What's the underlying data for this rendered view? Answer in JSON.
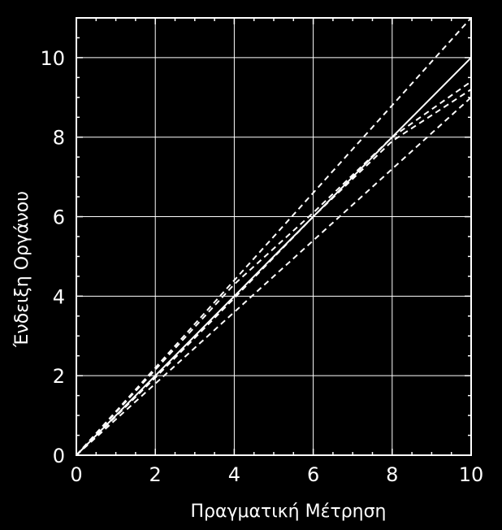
{
  "chart_data": {
    "type": "line",
    "xlabel": "Πραγματική Μέτρηση",
    "ylabel": "Ένδειξη Οργάνου",
    "xlim": [
      0,
      10
    ],
    "ylim": [
      0,
      11
    ],
    "xticks": [
      0,
      2,
      4,
      6,
      8,
      10
    ],
    "yticks": [
      0,
      2,
      4,
      6,
      8,
      10
    ],
    "grid": true,
    "background": "#000000",
    "foreground": "#ffffff",
    "series": [
      {
        "style": "solid",
        "x": [
          0,
          10
        ],
        "y": [
          0,
          10
        ]
      },
      {
        "style": "dashed",
        "x": [
          0,
          10
        ],
        "y": [
          0,
          11
        ]
      },
      {
        "style": "dashed",
        "x": [
          0,
          10
        ],
        "y": [
          0,
          9
        ]
      },
      {
        "style": "dashed",
        "x": [
          0,
          2,
          4,
          6,
          8,
          10
        ],
        "y": [
          0,
          2.15,
          4.3,
          6.1,
          8.0,
          9.4
        ]
      },
      {
        "style": "dashed",
        "x": [
          0,
          2,
          4,
          6,
          8,
          10
        ],
        "y": [
          0,
          1.95,
          3.95,
          6.0,
          7.9,
          9.2
        ]
      }
    ]
  }
}
